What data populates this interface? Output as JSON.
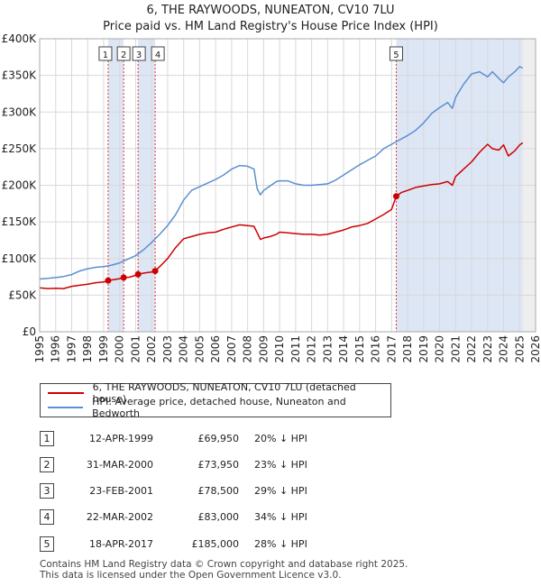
{
  "chart_data": {
    "type": "line",
    "title": "6, THE RAYWOODS, NUNEATON, CV10 7LU",
    "subtitle": "Price paid vs. HM Land Registry's House Price Index (HPI)",
    "xlim": [
      1995,
      2026
    ],
    "ylim": [
      0,
      400000
    ],
    "x_ticks": [
      "1995",
      "1996",
      "1997",
      "1998",
      "1999",
      "2000",
      "2001",
      "2002",
      "2003",
      "2004",
      "2005",
      "2006",
      "2007",
      "2008",
      "2009",
      "2010",
      "2011",
      "2012",
      "2013",
      "2014",
      "2015",
      "2016",
      "2017",
      "2018",
      "2019",
      "2020",
      "2021",
      "2022",
      "2023",
      "2024",
      "2025",
      "2026"
    ],
    "y_ticks": [
      "£0",
      "£50K",
      "£100K",
      "£150K",
      "£200K",
      "£250K",
      "£300K",
      "£350K",
      "£400K"
    ],
    "y_tick_values": [
      0,
      50000,
      100000,
      150000,
      200000,
      250000,
      300000,
      350000,
      400000
    ],
    "colors": {
      "property": "#cc0000",
      "hpi": "#5b8fd0",
      "shade": "#dde6f5",
      "vline": "#dd3333",
      "future": "#eeeeee"
    },
    "series": [
      {
        "name": "6, THE RAYWOODS, NUNEATON, CV10 7LU (detached house)",
        "x": [
          1995.0,
          1995.5,
          1996.0,
          1996.5,
          1997.0,
          1997.5,
          1998.0,
          1998.5,
          1999.0,
          1999.28,
          1999.6,
          2000.0,
          2000.25,
          2000.6,
          2001.0,
          2001.15,
          2001.6,
          2002.0,
          2002.22,
          2002.6,
          2003.0,
          2003.5,
          2004.0,
          2004.5,
          2005.0,
          2005.5,
          2006.0,
          2006.5,
          2007.0,
          2007.5,
          2008.0,
          2008.4,
          2008.6,
          2008.8,
          2009.0,
          2009.4,
          2009.8,
          2010.0,
          2010.5,
          2011.0,
          2011.5,
          2012.0,
          2012.5,
          2013.0,
          2013.5,
          2014.0,
          2014.5,
          2015.0,
          2015.5,
          2016.0,
          2016.5,
          2017.0,
          2017.29,
          2017.6,
          2018.0,
          2018.5,
          2019.0,
          2019.5,
          2020.0,
          2020.5,
          2020.8,
          2021.0,
          2021.5,
          2022.0,
          2022.5,
          2023.0,
          2023.3,
          2023.7,
          2024.0,
          2024.3,
          2024.7,
          2025.0,
          2025.2
        ],
        "values": [
          60000,
          59000,
          59500,
          59000,
          62000,
          63500,
          65000,
          67000,
          68000,
          69950,
          71000,
          72500,
          73950,
          74500,
          77000,
          78500,
          80500,
          81500,
          83000,
          91000,
          100000,
          115000,
          127000,
          130000,
          133000,
          135000,
          136000,
          140000,
          143000,
          146000,
          145000,
          144000,
          135000,
          126000,
          128000,
          130000,
          133000,
          136000,
          135000,
          134000,
          133000,
          133000,
          132000,
          133000,
          136000,
          139000,
          143000,
          145000,
          148000,
          154000,
          160000,
          167000,
          185000,
          190000,
          193000,
          197000,
          199000,
          201000,
          202000,
          205000,
          200000,
          212000,
          222000,
          232000,
          245000,
          256000,
          250000,
          248000,
          255000,
          240000,
          247000,
          255000,
          258000
        ]
      },
      {
        "name": "HPI: Average price, detached house, Nuneaton and Bedworth",
        "x": [
          1995.0,
          1995.5,
          1996.0,
          1996.5,
          1997.0,
          1997.5,
          1998.0,
          1998.5,
          1999.0,
          1999.5,
          2000.0,
          2000.5,
          2001.0,
          2001.5,
          2002.0,
          2002.5,
          2003.0,
          2003.5,
          2004.0,
          2004.5,
          2005.0,
          2005.5,
          2006.0,
          2006.5,
          2007.0,
          2007.5,
          2008.0,
          2008.4,
          2008.6,
          2008.8,
          2009.0,
          2009.4,
          2009.8,
          2010.0,
          2010.5,
          2011.0,
          2011.5,
          2012.0,
          2012.5,
          2013.0,
          2013.5,
          2014.0,
          2014.5,
          2015.0,
          2015.5,
          2016.0,
          2016.5,
          2017.0,
          2017.5,
          2018.0,
          2018.5,
          2019.0,
          2019.5,
          2020.0,
          2020.5,
          2020.8,
          2021.0,
          2021.5,
          2022.0,
          2022.5,
          2023.0,
          2023.3,
          2023.7,
          2024.0,
          2024.3,
          2024.7,
          2025.0,
          2025.2
        ],
        "values": [
          72000,
          73000,
          74000,
          75500,
          78000,
          83000,
          86000,
          88000,
          89000,
          91000,
          94000,
          99000,
          104000,
          112000,
          122000,
          133000,
          145000,
          160000,
          180000,
          193000,
          198000,
          203000,
          208000,
          214000,
          222000,
          227000,
          226000,
          222000,
          195000,
          187000,
          193000,
          199000,
          205000,
          206000,
          206000,
          202000,
          200000,
          200000,
          201000,
          202000,
          207000,
          214000,
          221000,
          228000,
          234000,
          240000,
          250000,
          256000,
          262000,
          268000,
          275000,
          285000,
          298000,
          306000,
          313000,
          305000,
          320000,
          338000,
          352000,
          355000,
          348000,
          355000,
          346000,
          340000,
          348000,
          355000,
          362000,
          360000
        ]
      }
    ],
    "sales": [
      {
        "label": "1",
        "x": 1999.28,
        "value": 69950
      },
      {
        "label": "2",
        "x": 2000.25,
        "value": 73950
      },
      {
        "label": "3",
        "x": 2001.15,
        "value": 78500
      },
      {
        "label": "4",
        "x": 2002.22,
        "value": 83000
      },
      {
        "label": "5",
        "x": 2017.29,
        "value": 185000
      }
    ],
    "shaded_ranges": [
      [
        1999.28,
        2000.25
      ],
      [
        2001.15,
        2002.22
      ],
      [
        2017.29,
        2025.2
      ]
    ],
    "future_from": 2025.2
  },
  "legend": {
    "property": "6, THE RAYWOODS, NUNEATON, CV10 7LU (detached house)",
    "hpi": "HPI: Average price, detached house, Nuneaton and Bedworth"
  },
  "table": [
    {
      "num": "1",
      "date": "12-APR-1999",
      "price": "£69,950",
      "hpi": "20% ↓ HPI"
    },
    {
      "num": "2",
      "date": "31-MAR-2000",
      "price": "£73,950",
      "hpi": "23% ↓ HPI"
    },
    {
      "num": "3",
      "date": "23-FEB-2001",
      "price": "£78,500",
      "hpi": "29% ↓ HPI"
    },
    {
      "num": "4",
      "date": "22-MAR-2002",
      "price": "£83,000",
      "hpi": "34% ↓ HPI"
    },
    {
      "num": "5",
      "date": "18-APR-2017",
      "price": "£185,000",
      "hpi": "28% ↓ HPI"
    }
  ],
  "footer": {
    "line1": "Contains HM Land Registry data © Crown copyright and database right 2025.",
    "line2": "This data is licensed under the Open Government Licence v3.0."
  }
}
